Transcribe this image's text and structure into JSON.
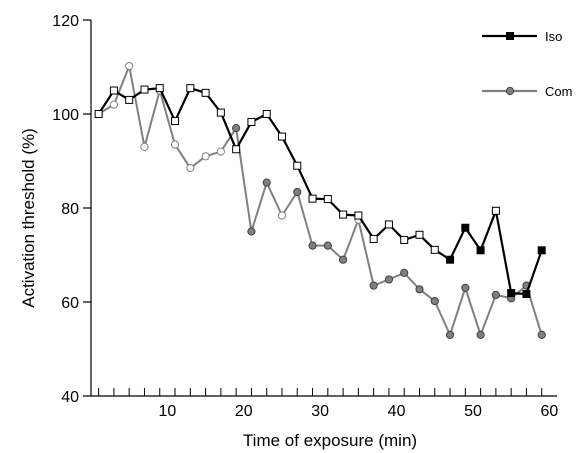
{
  "chart_data": {
    "type": "line",
    "title": "",
    "xlabel": "Time of exposure (min)",
    "ylabel": "Activation threshold (%)",
    "xlim": [
      0,
      61
    ],
    "ylim": [
      40,
      120
    ],
    "x_ticks": [
      10,
      20,
      30,
      40,
      50,
      60
    ],
    "x_tick_labels": [
      "10",
      "20",
      "30",
      "40",
      "50",
      "60"
    ],
    "x_minor_ticks": [
      1,
      3,
      5,
      7,
      9,
      11,
      13,
      15,
      17,
      19,
      21,
      23,
      25,
      27,
      29,
      31,
      33,
      35,
      37,
      39,
      41,
      43,
      45,
      47,
      49,
      51,
      53,
      55,
      57,
      59
    ],
    "y_ticks": [
      40,
      60,
      80,
      100,
      120
    ],
    "y_tick_labels": [
      "40",
      "60",
      "80",
      "100",
      "120"
    ],
    "grid": false,
    "legend_position": "top-right",
    "series": [
      {
        "name": "Iso",
        "color": "#000000",
        "marker": "square",
        "x": [
          1,
          3,
          5,
          7,
          9,
          11,
          13,
          15,
          17,
          19,
          21,
          23,
          25,
          27,
          29,
          31,
          33,
          35,
          37,
          39,
          41,
          43,
          45,
          47,
          49,
          51,
          53,
          55,
          57,
          59
        ],
        "y": [
          100,
          105,
          103,
          105.2,
          105.5,
          98.5,
          105.5,
          104.5,
          100.3,
          92.5,
          98.3,
          100,
          95.2,
          89,
          82,
          81.9,
          78.6,
          78.4,
          73.4,
          76.5,
          73.2,
          74.3,
          71.1,
          69,
          75.8,
          71,
          79.4,
          61.9,
          61.7,
          71
        ],
        "filled": [
          false,
          false,
          false,
          false,
          false,
          false,
          false,
          false,
          false,
          false,
          false,
          false,
          false,
          false,
          false,
          false,
          false,
          false,
          false,
          false,
          false,
          false,
          false,
          true,
          true,
          true,
          false,
          true,
          true,
          true
        ]
      },
      {
        "name": "Com",
        "color": "#808080",
        "marker": "circle",
        "x": [
          1,
          3,
          5,
          7,
          9,
          11,
          13,
          15,
          17,
          19,
          21,
          23,
          25,
          27,
          29,
          31,
          33,
          35,
          37,
          39,
          41,
          43,
          45,
          47,
          49,
          51,
          53,
          55,
          57,
          59
        ],
        "y": [
          100,
          102,
          110.2,
          93,
          105,
          93.5,
          88.5,
          91,
          92,
          97,
          75,
          85.4,
          78.4,
          83.4,
          72,
          72,
          69,
          77.5,
          63.5,
          64.8,
          66.2,
          62.7,
          60.2,
          53,
          63,
          53,
          61.5,
          60.8,
          63.5,
          53
        ],
        "filled": [
          false,
          false,
          false,
          false,
          false,
          false,
          false,
          false,
          false,
          true,
          true,
          true,
          false,
          true,
          true,
          true,
          true,
          false,
          true,
          true,
          true,
          true,
          true,
          true,
          true,
          true,
          true,
          true,
          true,
          true
        ]
      }
    ]
  }
}
